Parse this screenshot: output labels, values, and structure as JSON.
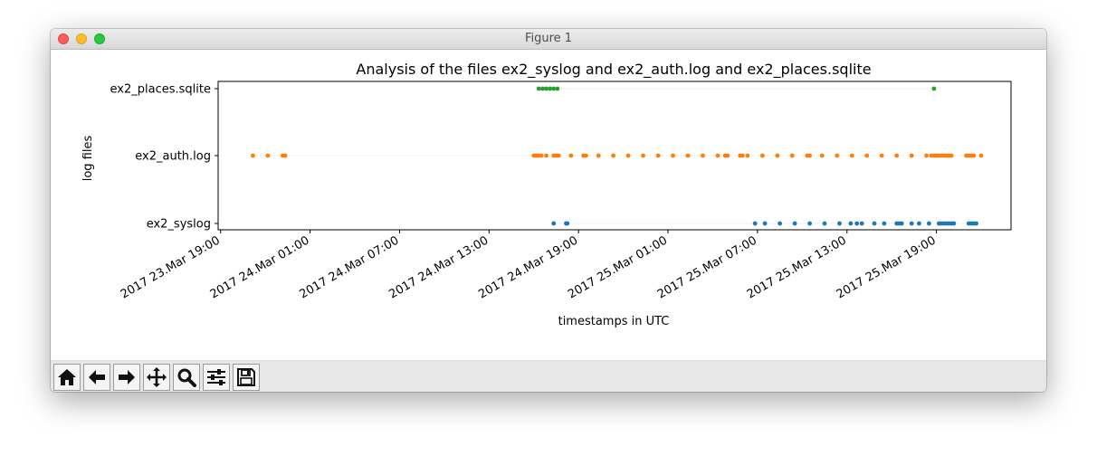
{
  "window": {
    "title": "Figure 1"
  },
  "toolbar": {
    "buttons": [
      {
        "name": "home-button",
        "icon": "home-icon"
      },
      {
        "name": "back-button",
        "icon": "arrow-left-icon"
      },
      {
        "name": "forward-button",
        "icon": "arrow-right-icon"
      },
      {
        "name": "pan-button",
        "icon": "move-icon"
      },
      {
        "name": "zoom-button",
        "icon": "magnifier-icon"
      },
      {
        "name": "configure-subplots-button",
        "icon": "sliders-icon"
      },
      {
        "name": "save-button",
        "icon": "floppy-disk-icon"
      }
    ]
  },
  "colors": {
    "ex2_syslog": "#1f77b4",
    "ex2_auth.log": "#ff7f0e",
    "ex2_places.sqlite": "#2ca02c"
  },
  "chart_data": {
    "type": "scatter",
    "title": "Analysis of the files ex2_syslog and ex2_auth.log and ex2_places.sqlite",
    "xlabel": "timestamps in UTC",
    "ylabel": "log files",
    "x_ticks": [
      "2017 23.Mar 19:00",
      "2017 24.Mar 01:00",
      "2017 24.Mar 07:00",
      "2017 24.Mar 13:00",
      "2017 24.Mar 19:00",
      "2017 25.Mar 01:00",
      "2017 25.Mar 07:00",
      "2017 25.Mar 13:00",
      "2017 25.Mar 19:00"
    ],
    "xlim": [
      "2017-03-23 18:50",
      "2017-03-26 00:00"
    ],
    "y_categories": [
      "ex2_syslog",
      "ex2_auth.log",
      "ex2_places.sqlite"
    ],
    "series": [
      {
        "name": "ex2_syslog",
        "x": [
          "2017-03-24 17:20",
          "2017-03-24 18:10",
          "2017-03-24 18:15",
          "2017-03-25 06:50",
          "2017-03-25 07:30",
          "2017-03-25 08:30",
          "2017-03-25 09:30",
          "2017-03-25 10:30",
          "2017-03-25 11:30",
          "2017-03-25 12:30",
          "2017-03-25 13:15",
          "2017-03-25 13:40",
          "2017-03-25 14:00",
          "2017-03-25 14:50",
          "2017-03-25 15:30",
          "2017-03-25 16:20",
          "2017-03-25 16:30",
          "2017-03-25 16:40",
          "2017-03-25 17:20",
          "2017-03-25 17:50",
          "2017-03-25 18:30",
          "2017-03-25 19:10",
          "2017-03-25 19:20",
          "2017-03-25 19:30",
          "2017-03-25 19:40",
          "2017-03-25 19:50",
          "2017-03-25 20:00",
          "2017-03-25 20:10",
          "2017-03-25 21:10",
          "2017-03-25 21:20",
          "2017-03-25 21:30",
          "2017-03-25 21:40"
        ]
      },
      {
        "name": "ex2_auth.log",
        "x": [
          "2017-03-23 21:10",
          "2017-03-23 22:10",
          "2017-03-23 23:10",
          "2017-03-23 23:20",
          "2017-03-24 16:00",
          "2017-03-24 16:10",
          "2017-03-24 16:20",
          "2017-03-24 16:30",
          "2017-03-24 16:50",
          "2017-03-24 17:20",
          "2017-03-24 17:30",
          "2017-03-24 17:40",
          "2017-03-24 18:30",
          "2017-03-24 19:20",
          "2017-03-24 19:30",
          "2017-03-24 20:20",
          "2017-03-24 21:20",
          "2017-03-24 22:20",
          "2017-03-24 23:20",
          "2017-03-25 00:20",
          "2017-03-25 01:20",
          "2017-03-25 02:20",
          "2017-03-25 03:20",
          "2017-03-25 04:20",
          "2017-03-25 04:50",
          "2017-03-25 05:00",
          "2017-03-25 05:50",
          "2017-03-25 06:00",
          "2017-03-25 06:20",
          "2017-03-25 07:20",
          "2017-03-25 08:20",
          "2017-03-25 09:20",
          "2017-03-25 10:20",
          "2017-03-25 10:30",
          "2017-03-25 11:20",
          "2017-03-25 12:20",
          "2017-03-25 13:20",
          "2017-03-25 14:20",
          "2017-03-25 15:20",
          "2017-03-25 16:20",
          "2017-03-25 17:20",
          "2017-03-25 18:20",
          "2017-03-25 18:40",
          "2017-03-25 18:50",
          "2017-03-25 19:00",
          "2017-03-25 19:10",
          "2017-03-25 19:20",
          "2017-03-25 19:30",
          "2017-03-25 19:40",
          "2017-03-25 19:50",
          "2017-03-25 20:00",
          "2017-03-25 21:00",
          "2017-03-25 21:10",
          "2017-03-25 21:20",
          "2017-03-25 21:30",
          "2017-03-25 22:00"
        ]
      },
      {
        "name": "ex2_places.sqlite",
        "x": [
          "2017-03-24 16:20",
          "2017-03-24 16:35",
          "2017-03-24 16:50",
          "2017-03-24 17:05",
          "2017-03-24 17:20",
          "2017-03-24 17:35",
          "2017-03-25 18:50"
        ]
      }
    ],
    "grid": false,
    "legend": "none"
  }
}
